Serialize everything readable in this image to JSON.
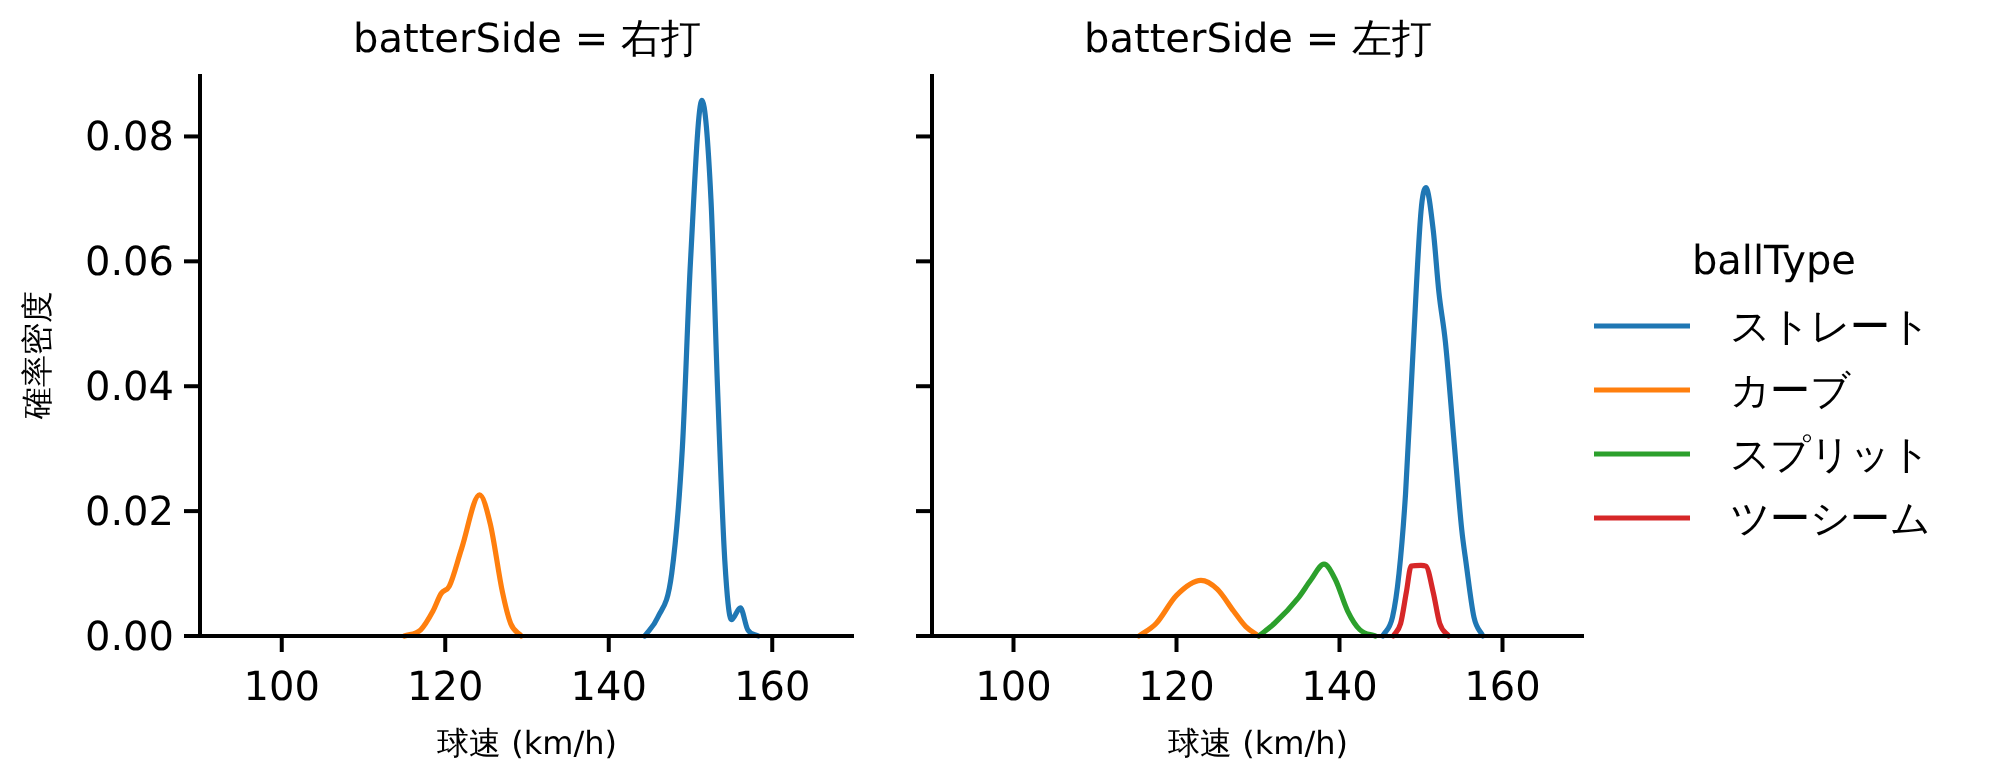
{
  "chart_data": [
    {
      "type": "line",
      "title": "batterSide = 右打",
      "xlabel": "球速 (km/h)",
      "ylabel": "確率密度",
      "xlim": [
        90,
        170
      ],
      "xticks": [
        100,
        120,
        140,
        160
      ],
      "ylim": [
        0,
        0.09
      ],
      "yticks": [
        {
          "value": 0,
          "label": "0.00"
        },
        {
          "value": 0.02,
          "label": "0.02"
        },
        {
          "value": 0.04,
          "label": "0.04"
        },
        {
          "value": 0.06,
          "label": "0.06"
        },
        {
          "value": 0.08,
          "label": "0.08"
        }
      ],
      "series": [
        {
          "color": "#1f77b4",
          "x": [
            144.4,
            146,
            147.7,
            149,
            150,
            151.4,
            152.5,
            153.3,
            154.2,
            155,
            156.1,
            157,
            158.3
          ],
          "values": [
            0,
            0.003,
            0.01,
            0.03,
            0.06,
            0.0858,
            0.07,
            0.04,
            0.012,
            0.0026,
            0.0045,
            0.001,
            0
          ]
        },
        {
          "color": "#ff7f0e",
          "x": [
            115,
            117,
            118.5,
            119.5,
            120.5,
            122,
            124.2,
            125.5,
            127,
            128,
            129.3
          ],
          "values": [
            0,
            0.001,
            0.004,
            0.0068,
            0.008,
            0.014,
            0.0226,
            0.018,
            0.007,
            0.002,
            0
          ]
        }
      ]
    },
    {
      "type": "line",
      "title": "batterSide = 左打",
      "xlabel": "球速 (km/h)",
      "xlim": [
        90,
        170
      ],
      "xticks": [
        100,
        120,
        140,
        160
      ],
      "ylim": [
        0,
        0.09
      ],
      "yticks": [
        {
          "value": 0,
          "label": null
        },
        {
          "value": 0.02,
          "label": null
        },
        {
          "value": 0.04,
          "label": null
        },
        {
          "value": 0.06,
          "label": null
        },
        {
          "value": 0.08,
          "label": null
        }
      ],
      "tick_labels": "x",
      "legend": "right",
      "legend_title": "ballType",
      "series": [
        {
          "name": "ストレート",
          "color": "#1f77b4",
          "x": [
            145.3,
            146.5,
            147.3,
            148.1,
            149,
            150,
            150.6,
            151.5,
            152.2,
            153,
            154,
            155,
            155.5,
            156.5,
            157.6
          ],
          "values": [
            0,
            0.003,
            0.01,
            0.0227,
            0.045,
            0.068,
            0.0718,
            0.065,
            0.055,
            0.047,
            0.032,
            0.017,
            0.012,
            0.003,
            0
          ]
        },
        {
          "name": "カーブ",
          "color": "#ff7f0e",
          "x": [
            115.4,
            117.5,
            120,
            123,
            125,
            127,
            128.5,
            130.1
          ],
          "values": [
            0,
            0.002,
            0.0065,
            0.0089,
            0.0075,
            0.004,
            0.0015,
            0
          ]
        },
        {
          "name": "スプリット",
          "color": "#2ca02c",
          "x": [
            130.1,
            132,
            135,
            136.5,
            138.1,
            139.5,
            141,
            142.5,
            144.4
          ],
          "values": [
            0,
            0.002,
            0.0062,
            0.009,
            0.0115,
            0.009,
            0.004,
            0.001,
            0
          ]
        },
        {
          "name": "ツーシーム",
          "color": "#d62728",
          "x": [
            146.6,
            147.5,
            148.2,
            148.8,
            150,
            150.6,
            151.5,
            152.3,
            153.4
          ],
          "values": [
            0,
            0.002,
            0.007,
            0.0112,
            0.0113,
            0.0112,
            0.007,
            0.002,
            0
          ]
        }
      ]
    }
  ]
}
